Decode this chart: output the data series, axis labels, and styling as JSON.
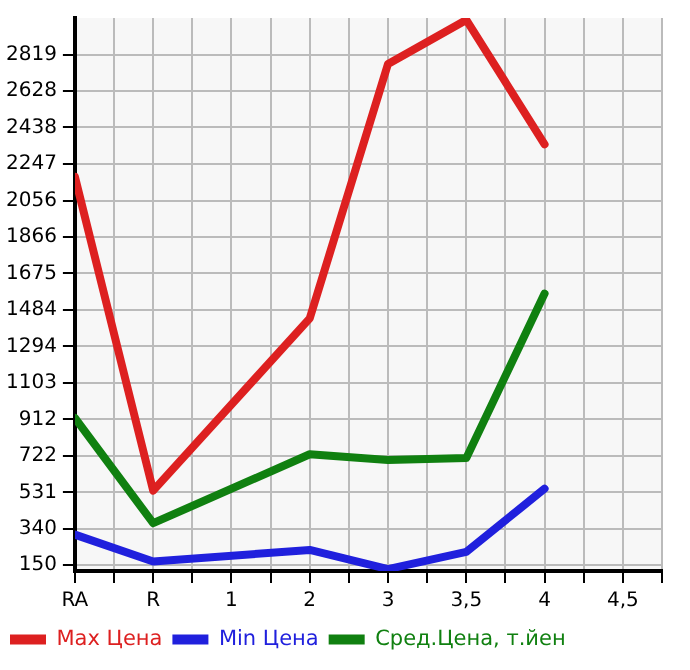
{
  "chart_data": {
    "type": "line",
    "categories": [
      "RA",
      "R",
      "1",
      "2",
      "3",
      "3,5",
      "4",
      "4,5"
    ],
    "series": [
      {
        "name": "Max Цена",
        "color": "#dd2020",
        "values": [
          2180,
          540,
          null,
          1440,
          2770,
          3000,
          2350,
          null
        ]
      },
      {
        "name": "Min Цена",
        "color": "#2020dd",
        "values": [
          310,
          170,
          null,
          230,
          130,
          220,
          550,
          null
        ]
      },
      {
        "name": "Сред.Цена, т.йен",
        "color": "#108010",
        "values": [
          920,
          370,
          null,
          730,
          700,
          710,
          1570,
          null
        ]
      }
    ],
    "ylim": [
      120,
      3010
    ],
    "yticks": [
      150,
      340,
      531,
      722,
      912,
      1103,
      1294,
      1484,
      1675,
      1866,
      2056,
      2247,
      2438,
      2628,
      2819
    ],
    "grid": true,
    "legend": "bottom",
    "marker": "none",
    "line_style": "solid"
  }
}
